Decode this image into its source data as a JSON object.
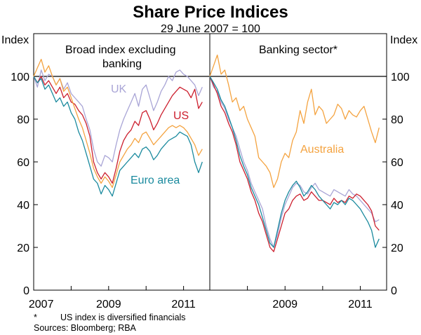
{
  "chart_data": {
    "type": "line",
    "title": "Share Price Indices",
    "subtitle": "29 June 2007 = 100",
    "ylabel_left": "Index",
    "ylabel_right": "Index",
    "ylim": [
      0,
      120
    ],
    "yticks": [
      "0",
      "20",
      "40",
      "60",
      "80",
      "100"
    ],
    "reference_line": 100,
    "colors": {
      "UK": "#a9a5d6",
      "US": "#cc1f2e",
      "Euro area": "#1a8a9e",
      "Australia": "#f4a340",
      "Banking": "#7a2030",
      "axis": "#000000",
      "grid": "#000000"
    },
    "panels": [
      {
        "title": "Broad index excluding banking",
        "xlim": [
          2007.0,
          2011.7
        ],
        "xticks": [
          {
            "label": "2007",
            "at": 2007.2
          },
          {
            "label": "2009",
            "at": 2009.0
          },
          {
            "label": "2011",
            "at": 2011.0
          }
        ],
        "series": [
          {
            "name": "UK",
            "x": [
              2007.0,
              2007.1,
              2007.2,
              2007.3,
              2007.4,
              2007.5,
              2007.6,
              2007.7,
              2007.8,
              2007.9,
              2008.0,
              2008.1,
              2008.2,
              2008.3,
              2008.4,
              2008.5,
              2008.6,
              2008.7,
              2008.8,
              2008.9,
              2009.0,
              2009.1,
              2009.2,
              2009.3,
              2009.4,
              2009.5,
              2009.6,
              2009.7,
              2009.8,
              2009.9,
              2010.0,
              2010.1,
              2010.2,
              2010.3,
              2010.4,
              2010.5,
              2010.6,
              2010.7,
              2010.8,
              2010.9,
              2011.0,
              2011.1,
              2011.2,
              2011.3,
              2011.4,
              2011.5
            ],
            "values": [
              100,
              95,
              103,
              98,
              101,
              100,
              96,
              99,
              94,
              97,
              92,
              90,
              88,
              86,
              80,
              75,
              66,
              60,
              58,
              63,
              62,
              60,
              68,
              75,
              80,
              84,
              88,
              92,
              86,
              94,
              96,
              90,
              84,
              88,
              93,
              96,
              100,
              98,
              102,
              103,
              101,
              100,
              98,
              96,
              91,
              95
            ]
          },
          {
            "name": "US",
            "x": [
              2007.0,
              2007.1,
              2007.2,
              2007.3,
              2007.4,
              2007.5,
              2007.6,
              2007.7,
              2007.8,
              2007.9,
              2008.0,
              2008.1,
              2008.2,
              2008.3,
              2008.4,
              2008.5,
              2008.6,
              2008.7,
              2008.8,
              2008.9,
              2009.0,
              2009.1,
              2009.2,
              2009.3,
              2009.4,
              2009.5,
              2009.6,
              2009.7,
              2009.8,
              2009.9,
              2010.0,
              2010.1,
              2010.2,
              2010.3,
              2010.4,
              2010.5,
              2010.6,
              2010.7,
              2010.8,
              2010.9,
              2011.0,
              2011.1,
              2011.2,
              2011.3,
              2011.4,
              2011.5
            ],
            "values": [
              100,
              97,
              100,
              96,
              98,
              95,
              92,
              95,
              90,
              92,
              88,
              87,
              84,
              82,
              78,
              72,
              60,
              55,
              52,
              55,
              53,
              50,
              57,
              65,
              70,
              73,
              75,
              79,
              77,
              83,
              84,
              80,
              75,
              78,
              82,
              85,
              88,
              91,
              93,
              95,
              94,
              93,
              90,
              94,
              85,
              88
            ]
          },
          {
            "name": "Euro area",
            "x": [
              2007.0,
              2007.1,
              2007.2,
              2007.3,
              2007.4,
              2007.5,
              2007.6,
              2007.7,
              2007.8,
              2007.9,
              2008.0,
              2008.1,
              2008.2,
              2008.3,
              2008.4,
              2008.5,
              2008.6,
              2008.7,
              2008.8,
              2008.9,
              2009.0,
              2009.1,
              2009.2,
              2009.3,
              2009.4,
              2009.5,
              2009.6,
              2009.7,
              2009.8,
              2009.9,
              2010.0,
              2010.1,
              2010.2,
              2010.3,
              2010.4,
              2010.5,
              2010.6,
              2010.7,
              2010.8,
              2010.9,
              2011.0,
              2011.1,
              2011.2,
              2011.3,
              2011.4,
              2011.5
            ],
            "values": [
              100,
              97,
              99,
              94,
              96,
              92,
              88,
              90,
              86,
              88,
              83,
              80,
              74,
              70,
              64,
              58,
              52,
              50,
              45,
              49,
              47,
              44,
              50,
              56,
              58,
              60,
              62,
              64,
              62,
              66,
              67,
              65,
              61,
              63,
              66,
              68,
              70,
              71,
              72,
              74,
              73,
              72,
              68,
              60,
              55,
              60
            ]
          },
          {
            "name": "Australia",
            "x": [
              2007.0,
              2007.1,
              2007.2,
              2007.3,
              2007.4,
              2007.5,
              2007.6,
              2007.7,
              2007.8,
              2007.9,
              2008.0,
              2008.1,
              2008.2,
              2008.3,
              2008.4,
              2008.5,
              2008.6,
              2008.7,
              2008.8,
              2008.9,
              2009.0,
              2009.1,
              2009.2,
              2009.3,
              2009.4,
              2009.5,
              2009.6,
              2009.7,
              2009.8,
              2009.9,
              2010.0,
              2010.1,
              2010.2,
              2010.3,
              2010.4,
              2010.5,
              2010.6,
              2010.7,
              2010.8,
              2010.9,
              2011.0,
              2011.1,
              2011.2,
              2011.3,
              2011.4,
              2011.5
            ],
            "values": [
              100,
              104,
              108,
              102,
              105,
              100,
              96,
              99,
              93,
              95,
              90,
              85,
              80,
              76,
              70,
              64,
              57,
              53,
              50,
              53,
              51,
              48,
              54,
              60,
              63,
              66,
              68,
              71,
              69,
              73,
              74,
              71,
              68,
              70,
              72,
              74,
              76,
              77,
              76,
              77,
              76,
              74,
              71,
              68,
              63,
              66
            ]
          }
        ]
      },
      {
        "title": "Banking sector*",
        "xlim": [
          2007.0,
          2011.7
        ],
        "xticks": [
          {
            "label": "2009",
            "at": 2009.0
          },
          {
            "label": "2011",
            "at": 2011.0
          }
        ],
        "series": [
          {
            "name": "Australia",
            "x": [
              2007.0,
              2007.1,
              2007.2,
              2007.3,
              2007.4,
              2007.5,
              2007.6,
              2007.7,
              2007.8,
              2007.9,
              2008.0,
              2008.1,
              2008.2,
              2008.3,
              2008.4,
              2008.5,
              2008.6,
              2008.7,
              2008.8,
              2008.9,
              2009.0,
              2009.1,
              2009.2,
              2009.3,
              2009.4,
              2009.5,
              2009.6,
              2009.7,
              2009.8,
              2009.9,
              2010.0,
              2010.1,
              2010.2,
              2010.3,
              2010.4,
              2010.5,
              2010.6,
              2010.7,
              2010.8,
              2010.9,
              2011.0,
              2011.1,
              2011.2,
              2011.3,
              2011.4,
              2011.5
            ],
            "values": [
              100,
              105,
              110,
              101,
              103,
              96,
              88,
              90,
              84,
              86,
              80,
              76,
              72,
              62,
              60,
              58,
              55,
              48,
              52,
              60,
              64,
              62,
              70,
              74,
              84,
              78,
              88,
              94,
              82,
              86,
              84,
              78,
              80,
              82,
              87,
              85,
              80,
              84,
              82,
              81,
              84,
              86,
              80,
              74,
              69,
              76
            ]
          },
          {
            "name": "UK",
            "x": [
              2007.0,
              2007.1,
              2007.2,
              2007.3,
              2007.4,
              2007.5,
              2007.6,
              2007.7,
              2007.8,
              2007.9,
              2008.0,
              2008.1,
              2008.2,
              2008.3,
              2008.4,
              2008.5,
              2008.6,
              2008.7,
              2008.8,
              2008.9,
              2009.0,
              2009.1,
              2009.2,
              2009.3,
              2009.4,
              2009.5,
              2009.6,
              2009.7,
              2009.8,
              2009.9,
              2010.0,
              2010.1,
              2010.2,
              2010.3,
              2010.4,
              2010.5,
              2010.6,
              2010.7,
              2010.8,
              2010.9,
              2011.0,
              2011.1,
              2011.2,
              2011.3,
              2011.4,
              2011.5
            ],
            "values": [
              100,
              95,
              93,
              88,
              85,
              80,
              76,
              72,
              66,
              60,
              56,
              50,
              46,
              42,
              38,
              30,
              24,
              20,
              26,
              34,
              40,
              44,
              48,
              50,
              49,
              46,
              45,
              48,
              50,
              47,
              46,
              45,
              44,
              47,
              46,
              45,
              44,
              47,
              45,
              44,
              42,
              40,
              38,
              36,
              32,
              33
            ]
          },
          {
            "name": "US",
            "x": [
              2007.0,
              2007.1,
              2007.2,
              2007.3,
              2007.4,
              2007.5,
              2007.6,
              2007.7,
              2007.8,
              2007.9,
              2008.0,
              2008.1,
              2008.2,
              2008.3,
              2008.4,
              2008.5,
              2008.6,
              2008.7,
              2008.8,
              2008.9,
              2009.0,
              2009.1,
              2009.2,
              2009.3,
              2009.4,
              2009.5,
              2009.6,
              2009.7,
              2009.8,
              2009.9,
              2010.0,
              2010.1,
              2010.2,
              2010.3,
              2010.4,
              2010.5,
              2010.6,
              2010.7,
              2010.8,
              2010.9,
              2011.0,
              2011.1,
              2011.2,
              2011.3,
              2011.4,
              2011.5
            ],
            "values": [
              100,
              96,
              92,
              86,
              83,
              78,
              74,
              68,
              60,
              56,
              52,
              46,
              42,
              36,
              32,
              26,
              20,
              18,
              24,
              30,
              36,
              38,
              42,
              44,
              45,
              42,
              43,
              46,
              44,
              42,
              42,
              41,
              40,
              43,
              41,
              42,
              41,
              44,
              43,
              45,
              44,
              42,
              40,
              37,
              30,
              28
            ]
          },
          {
            "name": "Euro area",
            "x": [
              2007.0,
              2007.1,
              2007.2,
              2007.3,
              2007.4,
              2007.5,
              2007.6,
              2007.7,
              2007.8,
              2007.9,
              2008.0,
              2008.1,
              2008.2,
              2008.3,
              2008.4,
              2008.5,
              2008.6,
              2008.7,
              2008.8,
              2008.9,
              2009.0,
              2009.1,
              2009.2,
              2009.3,
              2009.4,
              2009.5,
              2009.6,
              2009.7,
              2009.8,
              2009.9,
              2010.0,
              2010.1,
              2010.2,
              2010.3,
              2010.4,
              2010.5,
              2010.6,
              2010.7,
              2010.8,
              2010.9,
              2011.0,
              2011.1,
              2011.2,
              2011.3,
              2011.4,
              2011.5
            ],
            "values": [
              100,
              97,
              94,
              89,
              86,
              81,
              76,
              70,
              63,
              58,
              54,
              48,
              44,
              40,
              34,
              28,
              22,
              20,
              28,
              36,
              42,
              46,
              49,
              51,
              48,
              44,
              46,
              49,
              47,
              44,
              42,
              40,
              38,
              41,
              40,
              42,
              40,
              43,
              42,
              40,
              38,
              35,
              32,
              28,
              20,
              24
            ]
          }
        ]
      }
    ],
    "series_labels": [
      {
        "text": "UK",
        "color": "#a9a5d6"
      },
      {
        "text": "US",
        "color": "#cc1f2e"
      },
      {
        "text": "Euro area",
        "color": "#1a8a9e"
      },
      {
        "text": "Australia",
        "color": "#f4a340"
      }
    ],
    "notes": [
      "*",
      "US index is diversified financials"
    ],
    "sources": "Sources: Bloomberg; RBA"
  }
}
